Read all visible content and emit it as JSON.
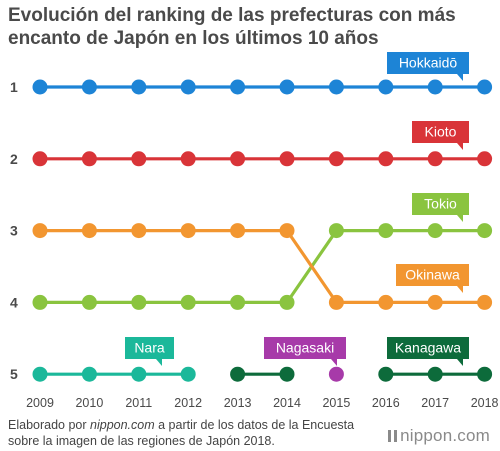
{
  "chart_data": {
    "type": "line",
    "title": "Evolución del ranking de las prefecturas con más encanto de Japón en los últimos 10 años",
    "xlabel": "",
    "ylabel": "",
    "x": [
      "2009",
      "2010",
      "2011",
      "2012",
      "2013",
      "2014",
      "2015",
      "2016",
      "2017",
      "2018"
    ],
    "yticks": [
      "1",
      "2",
      "3",
      "4",
      "5"
    ],
    "ylim": [
      1,
      5
    ],
    "y_inverted": true,
    "grid": false,
    "series": [
      {
        "name": "Hokkaidō",
        "color": "#1d84d6",
        "values": [
          1,
          1,
          1,
          1,
          1,
          1,
          1,
          1,
          1,
          1
        ]
      },
      {
        "name": "Kioto",
        "color": "#d93438",
        "values": [
          2,
          2,
          2,
          2,
          2,
          2,
          2,
          2,
          2,
          2
        ]
      },
      {
        "name": "Tokio",
        "color": "#8ac43f",
        "values": [
          4,
          4,
          4,
          4,
          4,
          4,
          3,
          3,
          3,
          3
        ]
      },
      {
        "name": "Okinawa",
        "color": "#f29630",
        "values": [
          3,
          3,
          3,
          3,
          3,
          3,
          4,
          4,
          4,
          4
        ]
      },
      {
        "name": "Nara",
        "color": "#1bb89a",
        "values": [
          5,
          5,
          5,
          5,
          null,
          null,
          null,
          null,
          null,
          null
        ]
      },
      {
        "name": "Nagasaki",
        "color": "#a73aa9",
        "values": [
          null,
          null,
          null,
          null,
          null,
          null,
          5,
          null,
          null,
          null
        ]
      },
      {
        "name": "Kanagawa",
        "color": "#0d6b3b",
        "values": [
          null,
          null,
          null,
          null,
          5,
          5,
          null,
          5,
          5,
          5
        ]
      }
    ]
  },
  "source": {
    "prefix": "Elaborado por ",
    "site": "nippon.com",
    "suffix": " a partir de los datos de la Encuesta sobre la imagen de las regiones de Japón 2018."
  },
  "brand": "nippon.com"
}
